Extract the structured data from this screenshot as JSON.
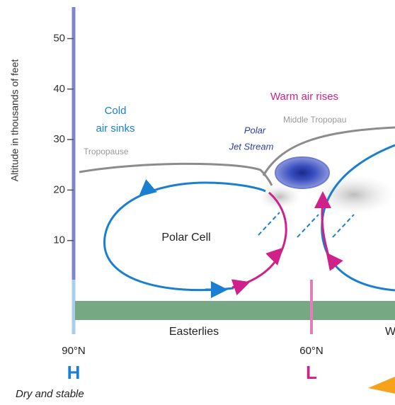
{
  "axis": {
    "title": "Altitude in thousands of feet",
    "ticks": [
      50,
      40,
      30,
      20,
      10
    ]
  },
  "labels": {
    "cold_air_sinks": [
      "Cold",
      "air sinks"
    ],
    "warm_air_rises": "Warm air rises",
    "middle_tropopause": "Middle Tropopau",
    "tropopause": "Tropopause",
    "polar_jet_stream": [
      "Polar",
      "Jet Stream"
    ],
    "polar_cell": "Polar Cell",
    "easterlies": "Easterlies",
    "westerlies": "W",
    "latitude_90": "90°N",
    "latitude_60": "60°N",
    "high": "H",
    "low": "L",
    "dry_and_stable": "Dry and stable"
  }
}
